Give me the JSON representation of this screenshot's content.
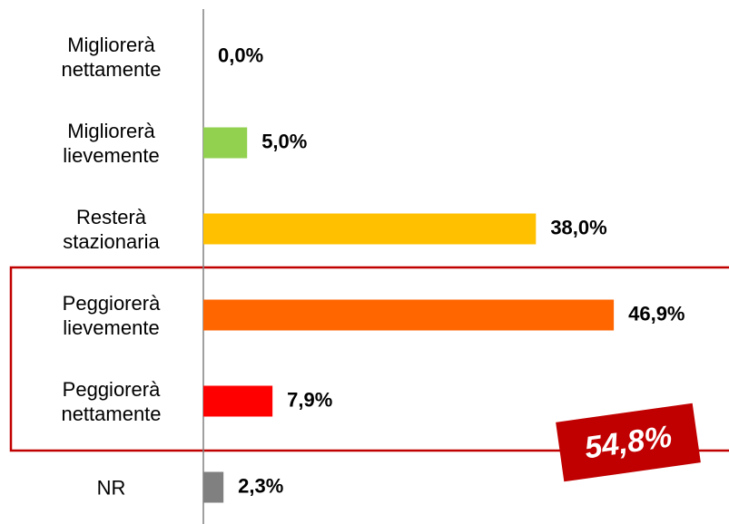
{
  "chart_data": {
    "type": "bar",
    "orientation": "horizontal",
    "categories": [
      "Migliorerà nettamente",
      "Migliorerà lievemente",
      "Resterà stazionaria",
      "Peggiorerà lievemente",
      "Peggiorerà nettamente",
      "NR"
    ],
    "series": [
      {
        "colors": [
          "#92d050",
          "#92d050",
          "#ffc000",
          "#ff6600",
          "#ff0000",
          "#808080"
        ],
        "values": [
          0,
          5,
          38,
          46.9,
          7.9,
          2.3
        ],
        "value_labels": [
          "0,0%",
          "5,0%",
          "38,0%",
          "46,9%",
          "7,9%",
          "2,3%"
        ]
      }
    ],
    "xlim": [
      0,
      50
    ],
    "annotation": "54,8%"
  }
}
